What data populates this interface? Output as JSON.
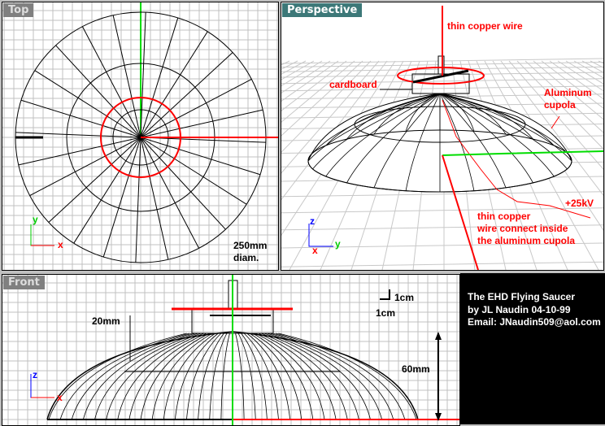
{
  "viewports": {
    "top": {
      "label": "Top",
      "dimension_line1": "250mm",
      "dimension_line2": "diam.",
      "axis_x": "x",
      "axis_y": "y"
    },
    "perspective": {
      "label": "Perspective",
      "annotations": {
        "wire_top": "thin copper wire",
        "cardboard": "cardboard",
        "cupola_1": "Aluminum",
        "cupola_2": "cupola",
        "voltage": "+25kV",
        "wire_1": "thin copper",
        "wire_2": "wire connect inside",
        "wire_3": "the aluminum cupola"
      },
      "axis_x": "x",
      "axis_y": "y",
      "axis_z": "z"
    },
    "front": {
      "label": "Front",
      "height_small": "20mm",
      "height_large": "60mm",
      "scale_v": "1cm",
      "scale_h": "1cm",
      "axis_x": "x",
      "axis_z": "z"
    }
  },
  "info": {
    "title": "The EHD Flying Saucer",
    "author": "by JL Naudin 04-10-99",
    "email": "Email: JNaudin509@aol.com"
  },
  "colors": {
    "label_active": "#3c7878",
    "label_inactive": "#808080",
    "x_axis": "#ff0000",
    "y_axis": "#00e000",
    "grid": "#c0c0c0"
  }
}
